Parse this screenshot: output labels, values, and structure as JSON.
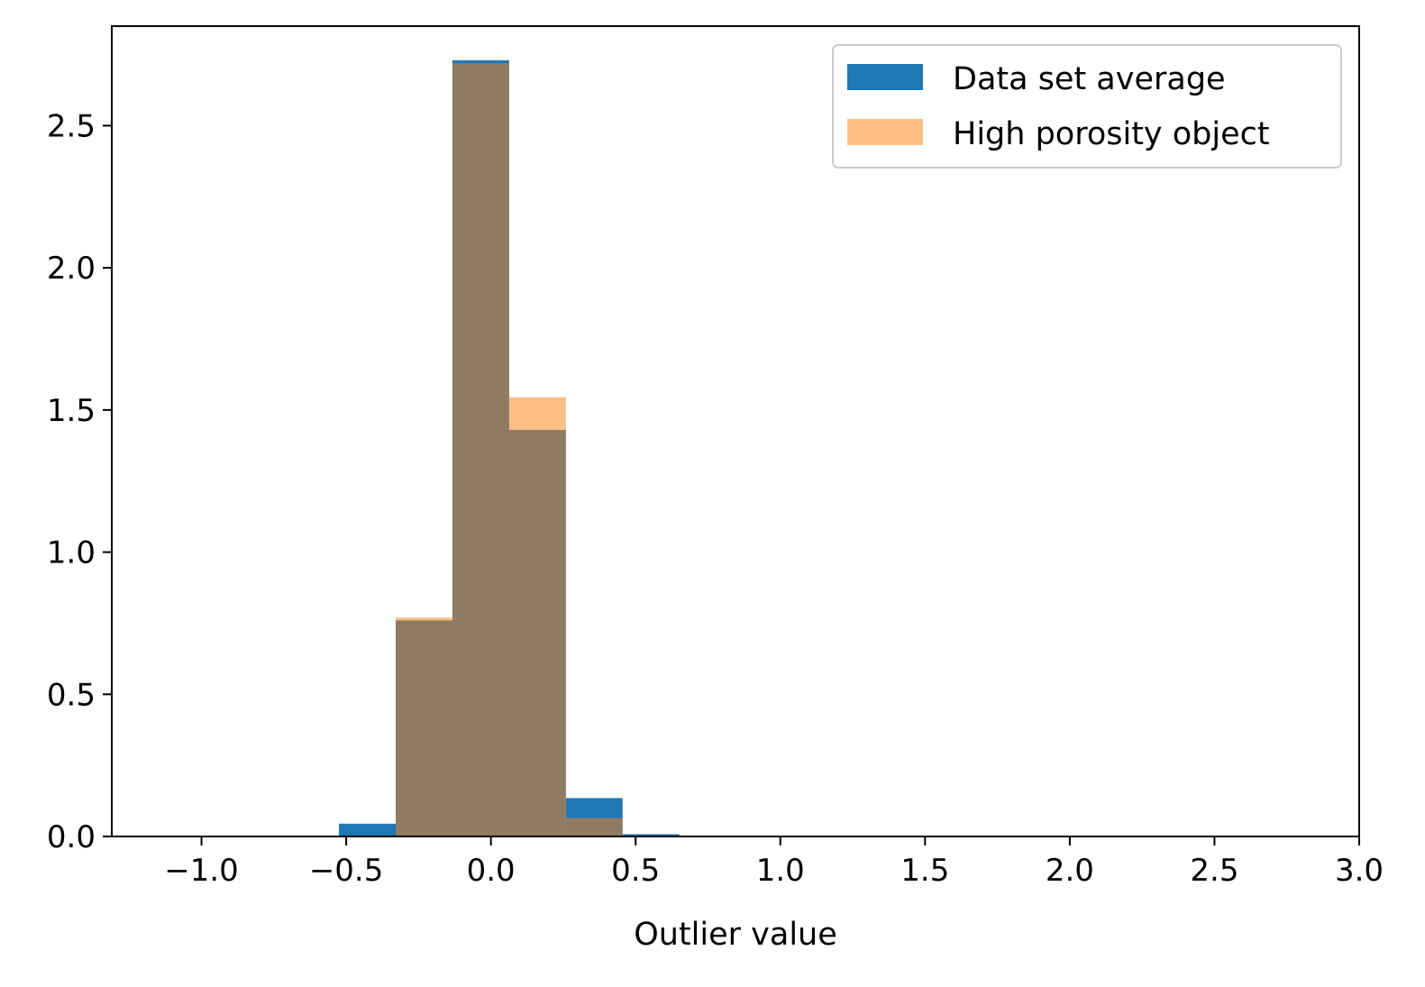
{
  "chart_data": {
    "type": "bar",
    "subtype": "histogram",
    "title": "",
    "xlabel": "Outlier value",
    "ylabel": "",
    "xlim": [
      -1.31,
      3.0
    ],
    "ylim": [
      0,
      2.85
    ],
    "grid": false,
    "legend_position": "top-right",
    "x_ticks": [
      -1.0,
      -0.5,
      0.0,
      0.5,
      1.0,
      1.5,
      2.0,
      2.5,
      3.0
    ],
    "x_tick_labels": [
      "−1.0",
      "−0.5",
      "0.0",
      "0.5",
      "1.0",
      "1.5",
      "2.0",
      "2.5",
      "3.0"
    ],
    "y_ticks": [
      0.0,
      0.5,
      1.0,
      1.5,
      2.0,
      2.5
    ],
    "y_tick_labels": [
      "0.0",
      "0.5",
      "1.0",
      "1.5",
      "2.0",
      "2.5"
    ],
    "bin_edges": [
      -0.525,
      -0.329,
      -0.133,
      0.063,
      0.259,
      0.455,
      0.651
    ],
    "series": [
      {
        "name": "Data set average",
        "color": "#1f77b4",
        "opacity": 1.0,
        "values": [
          0.045,
          0.76,
          2.73,
          1.43,
          0.135,
          0.008
        ]
      },
      {
        "name": "High porosity object",
        "color": "#ff7f0e",
        "opacity": 0.5,
        "values": [
          0.0,
          0.77,
          2.72,
          1.545,
          0.065,
          0.0
        ]
      }
    ]
  }
}
